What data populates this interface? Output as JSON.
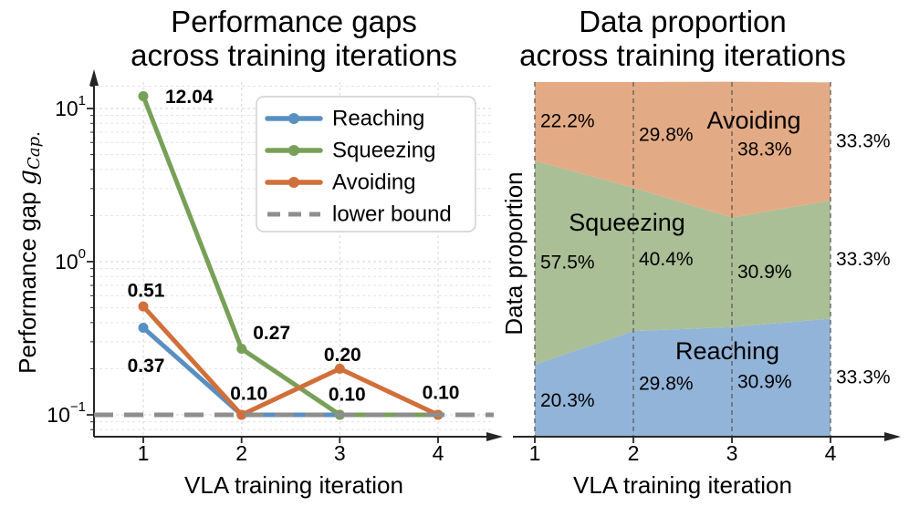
{
  "colors": {
    "axis": "#262626",
    "text": "#000000",
    "grid_minor": "#e3e3e3",
    "grid_major": "#d4d4d4",
    "grid_vertical": "#dcdcdc",
    "iteration_divider": "#5a5a5a",
    "lower_bound": "#8e8e8e",
    "legend_border": "#cfcfcf",
    "reaching": {
      "line": "#5a8fc2",
      "fill": "#92b4d9",
      "value_label": "#2b5ca9",
      "area_label": "#4778bd"
    },
    "squeezing": {
      "line": "#78a058",
      "fill": "#aabf96",
      "value_label": "#557f38",
      "area_label": "#5d8b43"
    },
    "avoiding": {
      "line": "#d16f3b",
      "fill": "#e3ab85",
      "value_label": "#c05c17",
      "area_label": "#cd6a33"
    }
  },
  "chart_data": [
    {
      "id": "performance_gaps",
      "type": "line",
      "title_lines": [
        "Performance gaps",
        "across training iterations"
      ],
      "xlabel": "VLA training iteration",
      "ylabel": {
        "prefix": "Performance gap ",
        "symbol": "g",
        "subscript": "Cap."
      },
      "yscale": "log",
      "ylim": [
        0.075,
        15
      ],
      "x": [
        1,
        2,
        3,
        4
      ],
      "xtick_labels": [
        "1",
        "2",
        "3",
        "4"
      ],
      "yticks": [
        {
          "value": 10,
          "base": "10",
          "exponent": "1"
        },
        {
          "value": 1,
          "base": "10",
          "exponent": "0"
        },
        {
          "value": 0.1,
          "base": "10",
          "exponent": "−1"
        }
      ],
      "grid": "both",
      "series": [
        {
          "name": "Reaching",
          "color_key": "reaching",
          "values": [
            0.37,
            0.1,
            0.1,
            0.1
          ],
          "point_labels": [
            "0.37",
            null,
            null,
            "0.10"
          ]
        },
        {
          "name": "Squeezing",
          "color_key": "squeezing",
          "values": [
            12.04,
            0.27,
            0.1,
            0.1
          ],
          "point_labels": [
            "12.04",
            "0.27",
            "0.10",
            null
          ]
        },
        {
          "name": "Avoiding",
          "color_key": "avoiding",
          "values": [
            0.51,
            0.1,
            0.2,
            0.1
          ],
          "point_labels": [
            "0.51",
            "0.10",
            "0.20",
            null
          ]
        }
      ],
      "lower_bound": {
        "value": 0.1,
        "label": "lower bound"
      },
      "legend": {
        "position": "upper right",
        "entries": [
          {
            "label": "Reaching",
            "color_key": "reaching",
            "style": "line-marker"
          },
          {
            "label": "Squeezing",
            "color_key": "squeezing",
            "style": "line-marker"
          },
          {
            "label": "Avoiding",
            "color_key": "avoiding",
            "style": "line-marker"
          },
          {
            "label": "lower bound",
            "color_key": "lower_bound",
            "style": "dashed"
          }
        ]
      }
    },
    {
      "id": "data_proportion",
      "type": "stacked_area",
      "title_lines": [
        "Data proportion",
        "across training iterations"
      ],
      "xlabel": "VLA training iteration",
      "ylabel": "Data proportion",
      "x": [
        1,
        2,
        3,
        4
      ],
      "xtick_labels": [
        "1",
        "2",
        "3",
        "4"
      ],
      "stack_order_bottom_to_top": [
        "Reaching",
        "Squeezing",
        "Avoiding"
      ],
      "series": [
        {
          "name": "Reaching",
          "color_key": "reaching",
          "values_pct": [
            20.3,
            29.8,
            30.9,
            33.3
          ],
          "labels": [
            "20.3%",
            "29.8%",
            "30.9%",
            "33.3%"
          ]
        },
        {
          "name": "Squeezing",
          "color_key": "squeezing",
          "values_pct": [
            57.5,
            40.4,
            30.9,
            33.3
          ],
          "labels": [
            "57.5%",
            "40.4%",
            "30.9%",
            "33.3%"
          ]
        },
        {
          "name": "Avoiding",
          "color_key": "avoiding",
          "values_pct": [
            22.2,
            29.8,
            38.3,
            33.3
          ],
          "labels": [
            "22.2%",
            "29.8%",
            "38.3%",
            "33.3%"
          ]
        }
      ]
    }
  ]
}
